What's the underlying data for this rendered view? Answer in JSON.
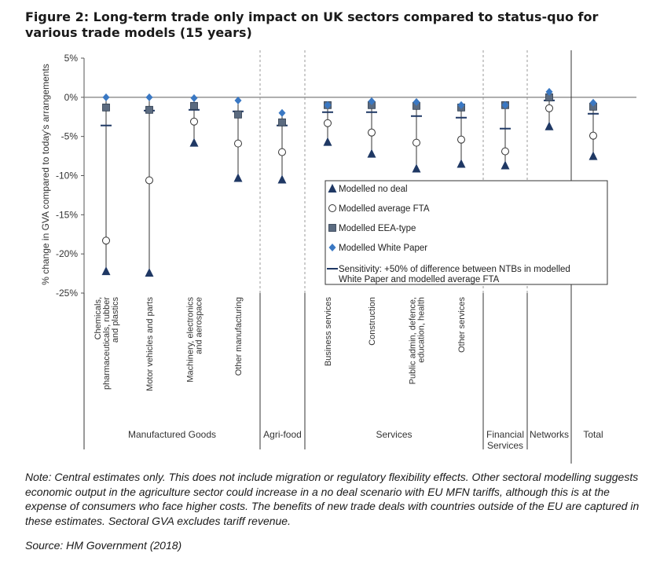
{
  "figure": {
    "title": "Figure 2: Long-term trade only impact on UK sectors compared to status-quo for various trade models (15 years)",
    "note": "Note: Central estimates only. This does not include migration or regulatory flexibility effects. Other sectoral modelling suggests economic output in the agriculture sector could increase in a no deal scenario with EU MFN tariffs, although this is at the expense of consumers who face higher costs. The benefits of new trade deals with countries outside of the EU are captured in these estimates. Sectoral GVA excludes tariff revenue.",
    "source": "Source: HM Government (2018)"
  },
  "chart_data": {
    "type": "scatter",
    "ylabel": "% change in GVA compared to today's arrangements",
    "ylim": [
      -25,
      5
    ],
    "yticks": [
      5,
      0,
      -5,
      -10,
      -15,
      -20,
      -25
    ],
    "ytick_labels": [
      "5%",
      "0%",
      "-5%",
      "-10%",
      "-15%",
      "-20%",
      "-25%"
    ],
    "categories": [
      "Chemicals, pharmaceuticals, rubber and plastics",
      "Motor vehicles and parts",
      "Machinery, electronics and aerospace",
      "Other manufacturing",
      "",
      "Business services",
      "Construction",
      "Public admin, defence, education, health",
      "Other services",
      "",
      "",
      ""
    ],
    "groups": [
      {
        "label": "Manufactured Goods",
        "start": 0,
        "end": 3
      },
      {
        "label": "Agri-food",
        "start": 4,
        "end": 4
      },
      {
        "label": "Services",
        "start": 5,
        "end": 8
      },
      {
        "label": "Financial Services",
        "start": 9,
        "end": 9
      },
      {
        "label": "Networks",
        "start": 10,
        "end": 10
      },
      {
        "label": "Total",
        "start": 11,
        "end": 11
      }
    ],
    "series": [
      {
        "name": "Modelled no deal",
        "marker": "triangle",
        "color": "#1f3864",
        "values": [
          -22.2,
          -22.4,
          -5.8,
          -10.3,
          -10.5,
          -5.7,
          -7.2,
          -9.1,
          -8.5,
          -8.7,
          -3.7,
          -7.5
        ]
      },
      {
        "name": "Modelled average FTA",
        "marker": "circle",
        "color": "#1f3864",
        "values": [
          -18.3,
          -10.6,
          -3.1,
          -5.9,
          -7.0,
          -3.3,
          -4.5,
          -5.8,
          -5.4,
          -6.9,
          -1.4,
          -4.9
        ]
      },
      {
        "name": "Modelled EEA-type",
        "marker": "square",
        "color": "#5b6b80",
        "values": [
          -1.3,
          -1.6,
          -1.1,
          -2.2,
          -3.2,
          -1.0,
          -1.0,
          -1.1,
          -1.3,
          -1.0,
          0.0,
          -1.2
        ]
      },
      {
        "name": "Modelled White Paper",
        "marker": "diamond",
        "color": "#3a78c3",
        "values": [
          0.0,
          0.0,
          -0.1,
          -0.4,
          -2.0,
          -1.0,
          -0.5,
          -0.6,
          -1.0,
          -1.0,
          0.7,
          -0.7
        ]
      },
      {
        "name": "Sensitivity: +50% of difference between NTBs in modelled White Paper and modelled average FTA",
        "marker": "dash",
        "color": "#1f3864",
        "values": [
          -3.6,
          -1.7,
          -1.6,
          -1.8,
          -3.6,
          -1.9,
          -1.9,
          -2.4,
          -2.6,
          -4.0,
          -0.4,
          -2.1
        ]
      }
    ],
    "legend_position": "lower-right",
    "grid": false,
    "zero_line": true
  }
}
